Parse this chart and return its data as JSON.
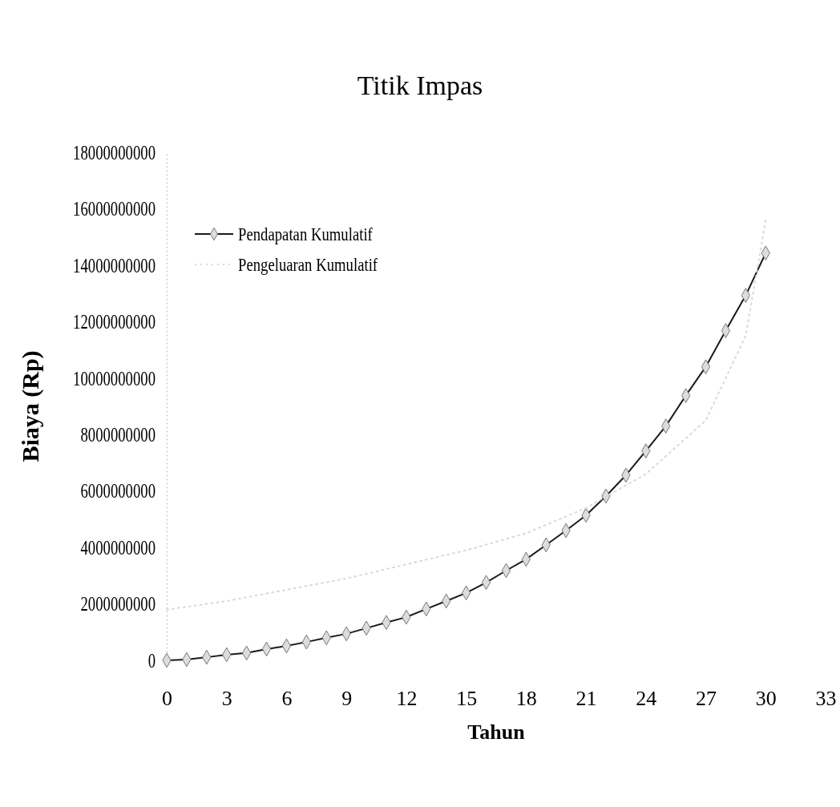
{
  "chart_data": {
    "type": "line",
    "title": "Titik Impas",
    "xlabel": "Tahun",
    "ylabel": "Biaya (Rp)",
    "xlim": [
      0,
      33
    ],
    "xticks": [
      0,
      3,
      6,
      9,
      12,
      15,
      18,
      21,
      24,
      27,
      30,
      33
    ],
    "ylim": [
      0,
      18000000000
    ],
    "yticks": [
      0,
      2000000000,
      4000000000,
      6000000000,
      8000000000,
      10000000000,
      12000000000,
      14000000000,
      16000000000,
      18000000000
    ],
    "legend": "top left",
    "grid": false,
    "series": [
      {
        "name": "Pendapatan Kumulatif",
        "color": "#1a1a1a",
        "marker": "diamond",
        "line_style": "solid",
        "x": [
          0,
          1,
          2,
          3,
          4,
          5,
          6,
          7,
          8,
          9,
          10,
          11,
          12,
          13,
          14,
          15,
          16,
          17,
          18,
          19,
          20,
          21,
          22,
          23,
          24,
          25,
          26,
          27,
          28,
          29,
          30
        ],
        "values": [
          0,
          30000000,
          110000000,
          200000000,
          260000000,
          400000000,
          510000000,
          650000000,
          800000000,
          940000000,
          1140000000,
          1340000000,
          1530000000,
          1820000000,
          2100000000,
          2390000000,
          2760000000,
          3180000000,
          3580000000,
          4090000000,
          4600000000,
          5140000000,
          5820000000,
          6560000000,
          7420000000,
          8300000000,
          9380000000,
          10400000000,
          11680000000,
          12930000000,
          14430000000
        ]
      },
      {
        "name": "Pengeluaran Kumulatif",
        "color": "#d9d9d9",
        "marker": "none",
        "line_style": "dotted",
        "x": [
          0,
          3,
          6,
          9,
          12,
          15,
          18,
          21,
          24,
          27,
          29,
          30
        ],
        "values": [
          1800000000,
          2100000000,
          2500000000,
          2900000000,
          3400000000,
          3900000000,
          4500000000,
          5400000000,
          6600000000,
          8500000000,
          11500000000,
          15600000000
        ]
      }
    ]
  }
}
